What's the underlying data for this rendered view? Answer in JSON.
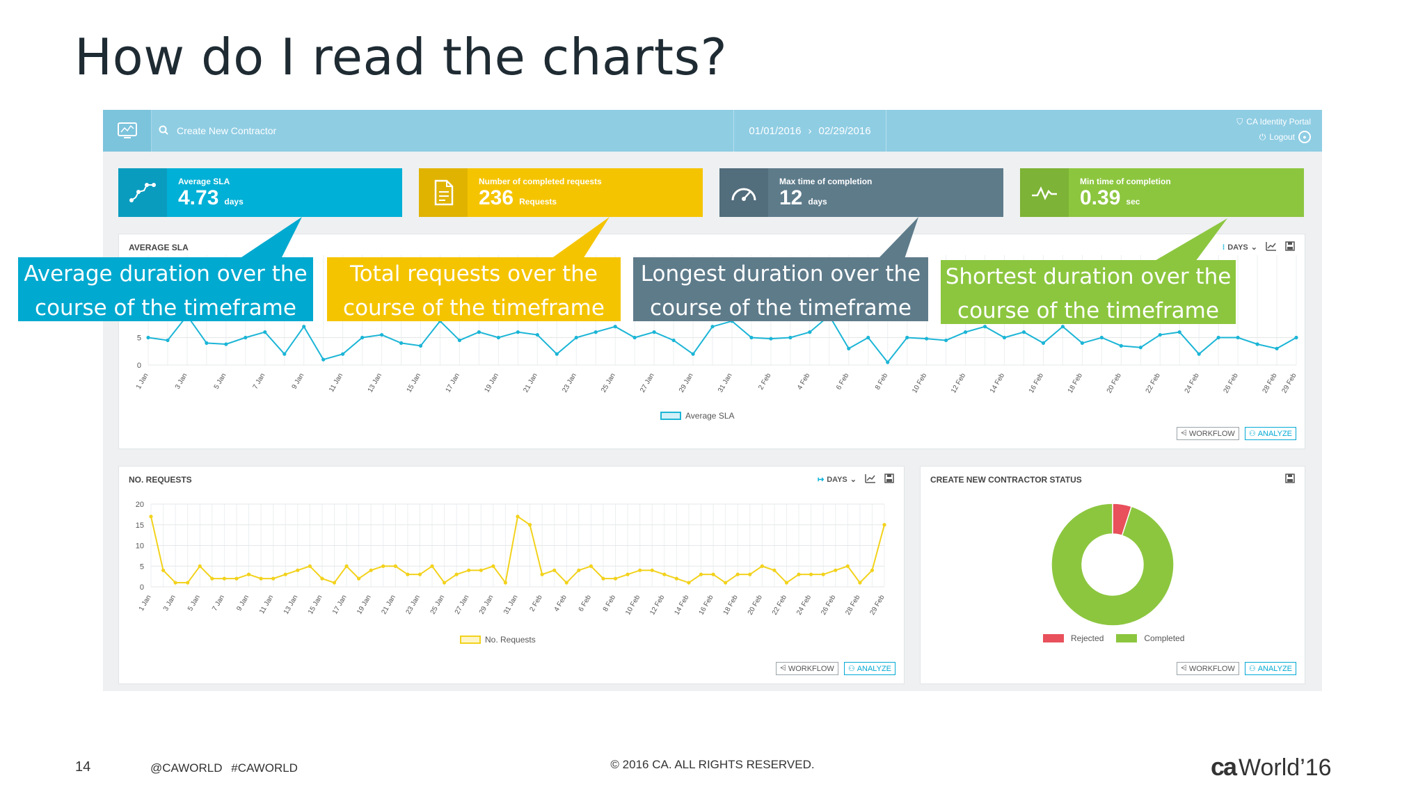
{
  "slide": {
    "title": "How do I read the charts?",
    "page_number": "14",
    "tags": "@CAWORLD  #CAWORLD",
    "copyright": "© 2016 CA. ALL RIGHTS RESERVED.",
    "logo_ca": "ca",
    "logo_text": "World’16"
  },
  "topbar": {
    "search_placeholder": "Create New Contractor",
    "date_from": "01/01/2016",
    "date_to": "02/29/2016",
    "portal_label": "CA Identity Portal",
    "logout_label": "Logout"
  },
  "kpis": [
    {
      "label": "Average SLA",
      "value": "4.73",
      "unit": "days",
      "color": "#00b0d6",
      "icon": "sla-route-icon"
    },
    {
      "label": "Number of completed requests",
      "value": "236",
      "unit": "Requests",
      "color": "#f5c400",
      "icon": "document-icon"
    },
    {
      "label": "Max time of completion",
      "value": "12",
      "unit": "days",
      "color": "#5e7b8a",
      "icon": "speedometer-icon"
    },
    {
      "label": "Min time of completion",
      "value": "0.39",
      "unit": "sec",
      "color": "#8cc63f",
      "icon": "pulse-icon"
    }
  ],
  "callouts": [
    {
      "text_line1": "Average duration over the",
      "text_line2": "course of the timeframe",
      "color": "#00a9cf"
    },
    {
      "text_line1": "Total requests over the",
      "text_line2": "course of the timeframe",
      "color": "#f5c400"
    },
    {
      "text_line1": "Longest duration over the",
      "text_line2": "course of the timeframe",
      "color": "#5e7b8a"
    },
    {
      "text_line1": "Shortest duration over the",
      "text_line2": "course of the timeframe",
      "color": "#8cc63f"
    }
  ],
  "cards": {
    "sla": {
      "title": "AVERAGE SLA",
      "days_label": "DAYS",
      "legend": "Average SLA"
    },
    "requests": {
      "title": "NO. REQUESTS",
      "days_label": "DAYS",
      "legend": "No. Requests"
    },
    "status": {
      "title": "CREATE NEW CONTRACTOR STATUS",
      "legend_rejected": "Rejected",
      "legend_completed": "Completed"
    },
    "workflow_label": "WORKFLOW",
    "analyze_label": "ANALYZE"
  },
  "chart_data": [
    {
      "type": "line",
      "title": "AVERAGE SLA",
      "series": [
        {
          "name": "Average SLA",
          "color": "#1bb5d6",
          "values": [
            5,
            4.5,
            9,
            4,
            3.8,
            5,
            6,
            2,
            7,
            1,
            2,
            5,
            5.5,
            4,
            3.5,
            8,
            4.5,
            6,
            5,
            6,
            5.5,
            2,
            5,
            6,
            7,
            5,
            6,
            4.5,
            2,
            7,
            8,
            5,
            4.8,
            5,
            6,
            9,
            3,
            5,
            0.5,
            5,
            4.8,
            4.5,
            6,
            7,
            5,
            6,
            4,
            7,
            4,
            5,
            3.5,
            3.2,
            5.5,
            6,
            2,
            5,
            5,
            3.8,
            3,
            5
          ]
        }
      ],
      "x_tick_labels": [
        "1 Jan",
        "3 Jan",
        "5 Jan",
        "7 Jan",
        "9 Jan",
        "11 Jan",
        "13 Jan",
        "15 Jan",
        "17 Jan",
        "19 Jan",
        "21 Jan",
        "23 Jan",
        "25 Jan",
        "27 Jan",
        "29 Jan",
        "31 Jan",
        "2 Feb",
        "4 Feb",
        "6 Feb",
        "8 Feb",
        "10 Feb",
        "12 Feb",
        "14 Feb",
        "16 Feb",
        "18 Feb",
        "20 Feb",
        "22 Feb",
        "24 Feb",
        "26 Feb",
        "28 Feb",
        "29 Feb"
      ],
      "y_ticks": [
        0,
        5
      ],
      "ylim": [
        0,
        20
      ],
      "grid": true
    },
    {
      "type": "line",
      "title": "NO. REQUESTS",
      "series": [
        {
          "name": "No. Requests",
          "color": "#f2d21c",
          "values": [
            17,
            4,
            1,
            1,
            5,
            2,
            2,
            2,
            3,
            2,
            2,
            3,
            4,
            5,
            2,
            1,
            5,
            2,
            4,
            5,
            5,
            3,
            3,
            5,
            1,
            3,
            4,
            4,
            5,
            1,
            17,
            15,
            3,
            4,
            1,
            4,
            5,
            2,
            2,
            3,
            4,
            4,
            3,
            2,
            1,
            3,
            3,
            1,
            3,
            3,
            5,
            4,
            1,
            3,
            3,
            3,
            4,
            5,
            1,
            4,
            15
          ]
        }
      ],
      "x_tick_labels": [
        "1 Jan",
        "3 Jan",
        "5 Jan",
        "7 Jan",
        "9 Jan",
        "11 Jan",
        "13 Jan",
        "15 Jan",
        "17 Jan",
        "19 Jan",
        "21 Jan",
        "23 Jan",
        "25 Jan",
        "27 Jan",
        "29 Jan",
        "31 Jan",
        "2 Feb",
        "4 Feb",
        "6 Feb",
        "8 Feb",
        "10 Feb",
        "12 Feb",
        "14 Feb",
        "16 Feb",
        "18 Feb",
        "20 Feb",
        "22 Feb",
        "24 Feb",
        "26 Feb",
        "28 Feb",
        "29 Feb"
      ],
      "y_ticks": [
        0,
        5,
        10,
        15,
        20
      ],
      "ylim": [
        0,
        20
      ],
      "grid": true
    },
    {
      "type": "pie",
      "title": "CREATE NEW CONTRACTOR STATUS",
      "categories": [
        "Rejected",
        "Completed"
      ],
      "values": [
        5,
        95
      ],
      "colors": [
        "#e8505b",
        "#8cc63f"
      ],
      "donut": true
    }
  ]
}
